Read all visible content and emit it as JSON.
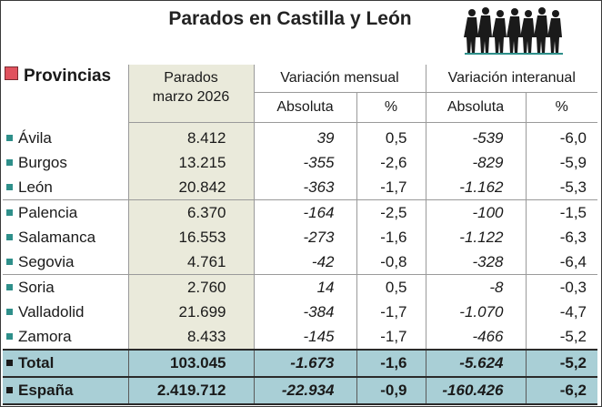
{
  "title": "Parados en Castilla y León",
  "icon": "people-silhouettes-icon",
  "header": {
    "provincias": "Provincias",
    "parados_line1": "Parados",
    "parados_line2": "marzo 2026",
    "var_mensual": "Variación mensual",
    "var_interanual": "Variación interanual",
    "absoluta": "Absoluta",
    "pct": "%"
  },
  "colors": {
    "bullet": "#2e8f8a",
    "provincias_square": "#e0525e",
    "parados_column": "#eaeadb",
    "total_rows": "#a9cfd6"
  },
  "rows": [
    {
      "name": "Ávila",
      "parados": "8.412",
      "mens_abs": "39",
      "mens_pct": "0,5",
      "inter_abs": "-539",
      "inter_pct": "-6,0"
    },
    {
      "name": "Burgos",
      "parados": "13.215",
      "mens_abs": "-355",
      "mens_pct": "-2,6",
      "inter_abs": "-829",
      "inter_pct": "-5,9"
    },
    {
      "name": "León",
      "parados": "20.842",
      "mens_abs": "-363",
      "mens_pct": "-1,7",
      "inter_abs": "-1.162",
      "inter_pct": "-5,3"
    },
    {
      "name": "Palencia",
      "parados": "6.370",
      "mens_abs": "-164",
      "mens_pct": "-2,5",
      "inter_abs": "-100",
      "inter_pct": "-1,5"
    },
    {
      "name": "Salamanca",
      "parados": "16.553",
      "mens_abs": "-273",
      "mens_pct": "-1,6",
      "inter_abs": "-1.122",
      "inter_pct": "-6,3"
    },
    {
      "name": "Segovia",
      "parados": "4.761",
      "mens_abs": "-42",
      "mens_pct": "-0,8",
      "inter_abs": "-328",
      "inter_pct": "-6,4"
    },
    {
      "name": "Soria",
      "parados": "2.760",
      "mens_abs": "14",
      "mens_pct": "0,5",
      "inter_abs": "-8",
      "inter_pct": "-0,3"
    },
    {
      "name": "Valladolid",
      "parados": "21.699",
      "mens_abs": "-384",
      "mens_pct": "-1,7",
      "inter_abs": "-1.070",
      "inter_pct": "-4,7"
    },
    {
      "name": "Zamora",
      "parados": "8.433",
      "mens_abs": "-145",
      "mens_pct": "-1,7",
      "inter_abs": "-466",
      "inter_pct": "-5,2"
    }
  ],
  "totals": [
    {
      "name": "Total",
      "parados": "103.045",
      "mens_abs": "-1.673",
      "mens_pct": "-1,6",
      "inter_abs": "-5.624",
      "inter_pct": "-5,2"
    },
    {
      "name": "España",
      "parados": "2.419.712",
      "mens_abs": "-22.934",
      "mens_pct": "-0,9",
      "inter_abs": "-160.426",
      "inter_pct": "-6,2"
    }
  ]
}
